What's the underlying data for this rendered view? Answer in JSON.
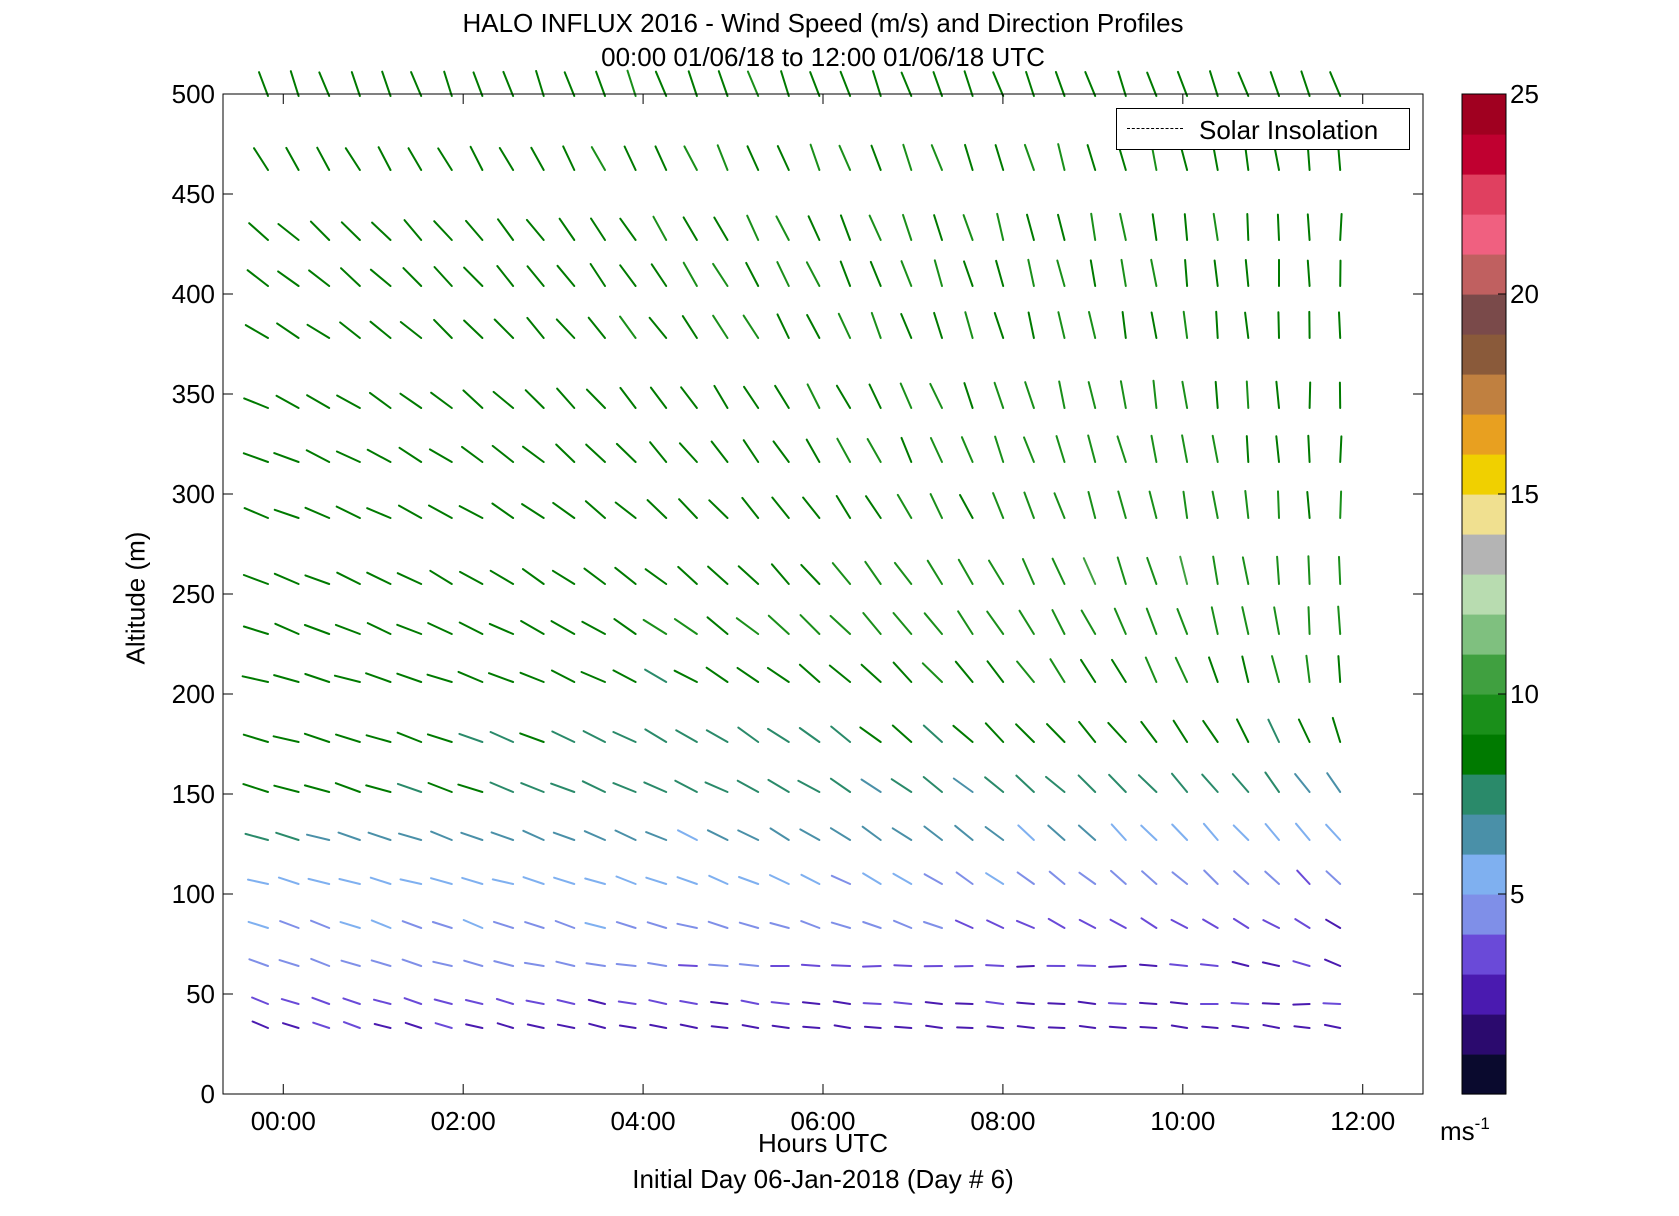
{
  "title": {
    "line1": "HALO INFLUX 2016 - Wind Speed (m/s) and Direction Profiles",
    "line2": "00:00 01/06/18 to 12:00 01/06/18  UTC"
  },
  "colorbar": {
    "min": 0,
    "max": 25,
    "ticks": [
      "5",
      "10",
      "15",
      "20",
      "25"
    ],
    "unit_base": "ms",
    "unit_exp": "-1",
    "colors": [
      "#0a0a2e",
      "#2b0a6e",
      "#4a1ab0",
      "#6a4ad8",
      "#7f8fe8",
      "#7fb0f0",
      "#4a90a8",
      "#2a8a6a",
      "#007a00",
      "#1a8f1a",
      "#40a040",
      "#7fc07f",
      "#b8dcb0",
      "#b4b4b4",
      "#f0e090",
      "#f0d000",
      "#e8a020",
      "#c08040",
      "#8a5a3a",
      "#7a4a4a",
      "#c06060",
      "#f06080",
      "#e04060",
      "#c00030",
      "#a00020"
    ]
  },
  "legend": {
    "label": "Solar Insolation"
  },
  "xlabel": "Hours UTC",
  "caption": "Initial Day 06-Jan-2018 (Day # 6)",
  "ylabel": "Altitude (m)",
  "chart_data": {
    "type": "quiver",
    "x_ticks": [
      {
        "value": 0,
        "label": "00:00"
      },
      {
        "value": 2,
        "label": "02:00"
      },
      {
        "value": 4,
        "label": "04:00"
      },
      {
        "value": 6,
        "label": "06:00"
      },
      {
        "value": 8,
        "label": "08:00"
      },
      {
        "value": 10,
        "label": "10:00"
      },
      {
        "value": 12,
        "label": "12:00"
      }
    ],
    "y_ticks": [
      0,
      50,
      100,
      150,
      200,
      250,
      300,
      350,
      400,
      450,
      500
    ],
    "xlim": [
      -0.67,
      12.67
    ],
    "ylim": [
      0,
      500
    ],
    "time_range_hours": [
      -0.17,
      11.75
    ],
    "profiles": [
      {
        "altitude": 33,
        "speed": [
          3.0,
          2.8,
          2.6,
          2.5,
          2.4,
          2.3
        ],
        "direction": [
          290,
          285,
          280,
          275,
          275,
          280
        ]
      },
      {
        "altitude": 45,
        "speed": [
          3.5,
          3.3,
          3.1,
          3.0,
          2.9,
          2.8
        ],
        "direction": [
          290,
          285,
          280,
          275,
          275,
          270
        ]
      },
      {
        "altitude": 64,
        "speed": [
          4.8,
          4.5,
          4.0,
          3.4,
          3.0,
          2.8
        ],
        "direction": [
          290,
          285,
          275,
          270,
          270,
          290
        ]
      },
      {
        "altitude": 83,
        "speed": [
          5.0,
          5.0,
          4.8,
          4.2,
          3.5,
          3.0
        ],
        "direction": [
          290,
          290,
          285,
          290,
          300,
          300
        ]
      },
      {
        "altitude": 105,
        "speed": [
          5.5,
          5.8,
          5.3,
          5.2,
          4.6,
          4.0
        ],
        "direction": [
          285,
          285,
          290,
          300,
          310,
          315
        ]
      },
      {
        "altitude": 127,
        "speed": [
          7.0,
          6.6,
          6.0,
          6.5,
          5.8,
          5.5
        ],
        "direction": [
          285,
          290,
          295,
          305,
          315,
          320
        ]
      },
      {
        "altitude": 151,
        "speed": [
          8.5,
          8.0,
          7.5,
          7.0,
          7.5,
          7.0
        ],
        "direction": [
          285,
          290,
          295,
          305,
          315,
          325
        ]
      },
      {
        "altitude": 176,
        "speed": [
          8.5,
          8.0,
          7.5,
          8.0,
          8.5,
          8.0
        ],
        "direction": [
          285,
          290,
          300,
          310,
          320,
          340
        ]
      },
      {
        "altitude": 206,
        "speed": [
          8.5,
          8.5,
          8.0,
          9.0,
          9.0,
          9.0
        ],
        "direction": [
          285,
          290,
          300,
          315,
          330,
          355
        ]
      },
      {
        "altitude": 230,
        "speed": [
          8.5,
          8.5,
          9.0,
          9.5,
          9.5,
          9.5
        ],
        "direction": [
          290,
          295,
          305,
          320,
          335,
          358
        ]
      },
      {
        "altitude": 255,
        "speed": [
          8.5,
          8.5,
          8.5,
          9.5,
          10.0,
          9.5
        ],
        "direction": [
          290,
          300,
          310,
          325,
          340,
          360
        ]
      },
      {
        "altitude": 288,
        "speed": [
          8.5,
          8.5,
          8.5,
          9.0,
          9.5,
          9.0
        ],
        "direction": [
          290,
          300,
          315,
          330,
          345,
          360
        ]
      },
      {
        "altitude": 316,
        "speed": [
          8.5,
          8.5,
          8.5,
          9.0,
          9.5,
          8.5
        ],
        "direction": [
          290,
          305,
          320,
          335,
          345,
          360
        ]
      },
      {
        "altitude": 343,
        "speed": [
          8.5,
          8.5,
          8.5,
          9.0,
          9.5,
          8.5
        ],
        "direction": [
          295,
          310,
          325,
          335,
          350,
          360
        ]
      },
      {
        "altitude": 378,
        "speed": [
          8.5,
          8.5,
          9.0,
          9.0,
          9.0,
          8.5
        ],
        "direction": [
          300,
          315,
          325,
          340,
          350,
          360
        ]
      },
      {
        "altitude": 404,
        "speed": [
          8.5,
          8.5,
          9.0,
          9.0,
          9.0,
          8.5
        ],
        "direction": [
          305,
          318,
          328,
          340,
          350,
          360
        ]
      },
      {
        "altitude": 427,
        "speed": [
          8.5,
          8.5,
          9.0,
          9.0,
          9.0,
          8.5
        ],
        "direction": [
          310,
          320,
          330,
          340,
          350,
          360
        ]
      },
      {
        "altitude": 462,
        "speed": [
          8.5,
          8.5,
          9.0,
          9.0,
          9.0,
          8.5
        ],
        "direction": [
          330,
          330,
          335,
          340,
          345,
          355
        ]
      },
      {
        "altitude": 499,
        "speed": [
          8.5,
          8.5,
          9.0,
          8.5,
          8.5,
          8.5
        ],
        "direction": [
          340,
          340,
          340,
          340,
          340,
          340
        ]
      }
    ]
  }
}
